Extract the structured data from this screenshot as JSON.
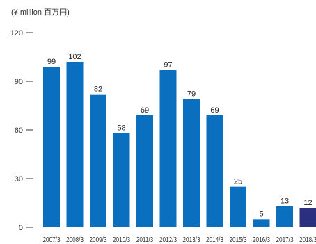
{
  "chart_data": {
    "type": "bar",
    "unit_label": "(¥ million  百万円)",
    "categories": [
      "2007/3",
      "2008/3",
      "2009/3",
      "2010/3",
      "2011/3",
      "2012/3",
      "2013/3",
      "2014/3",
      "2015/3",
      "2016/3",
      "2017/3",
      "2018/3"
    ],
    "values": [
      99,
      102,
      82,
      58,
      69,
      97,
      79,
      69,
      25,
      5,
      13,
      12
    ],
    "data_labels": [
      "99",
      "102",
      "82",
      "58",
      "69",
      "97",
      "79",
      "69",
      "25",
      "5",
      "13",
      "12"
    ],
    "yticks": [
      0,
      30,
      60,
      90,
      120
    ],
    "ytick_labels": [
      "0",
      "30",
      "60",
      "90",
      "120"
    ],
    "ylim": [
      0,
      120
    ],
    "grid": false,
    "legend": "none",
    "colors": {
      "bar": "#0a6fbf",
      "highlight_bar": "#2b2f7f",
      "axis": "#333333"
    },
    "highlight_index": 11
  }
}
